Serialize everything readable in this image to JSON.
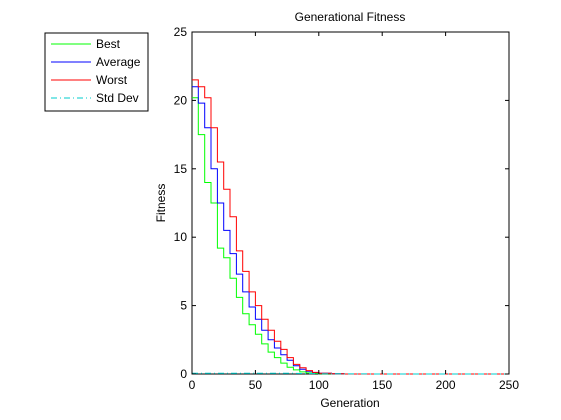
{
  "chart_data": {
    "type": "line",
    "title": "Generational Fitness",
    "xlabel": "Generation",
    "ylabel": "Fitness",
    "xlim": [
      0,
      250
    ],
    "ylim": [
      0,
      25
    ],
    "xticks": [
      0,
      50,
      100,
      150,
      200,
      250
    ],
    "yticks": [
      0,
      5,
      10,
      15,
      20,
      25
    ],
    "grid": false,
    "legend_position": "outside-top-left",
    "series": [
      {
        "name": "Best",
        "color": "#00ff00",
        "dash": "solid",
        "x": [
          0,
          5,
          10,
          15,
          20,
          25,
          30,
          35,
          40,
          45,
          50,
          55,
          60,
          65,
          70,
          75,
          80,
          85,
          90,
          95,
          100,
          110,
          120,
          150,
          200,
          250
        ],
        "y": [
          20.2,
          17.5,
          14.0,
          12.5,
          9.2,
          8.5,
          7.0,
          5.6,
          4.4,
          3.6,
          2.9,
          2.2,
          1.6,
          1.2,
          0.8,
          0.5,
          0.3,
          0.15,
          0.08,
          0.04,
          0.02,
          0.01,
          0,
          0,
          0,
          0
        ]
      },
      {
        "name": "Average",
        "color": "#0000ff",
        "dash": "solid",
        "x": [
          0,
          5,
          10,
          15,
          20,
          25,
          30,
          35,
          40,
          45,
          50,
          55,
          60,
          65,
          70,
          75,
          80,
          85,
          90,
          95,
          100,
          110,
          120,
          150,
          200,
          250
        ],
        "y": [
          21.0,
          19.8,
          18.0,
          15.0,
          12.5,
          10.5,
          8.8,
          7.3,
          6.0,
          4.9,
          4.0,
          3.2,
          2.5,
          1.9,
          1.4,
          1.0,
          0.6,
          0.35,
          0.2,
          0.1,
          0.05,
          0.02,
          0,
          0,
          0,
          0
        ]
      },
      {
        "name": "Worst",
        "color": "#ff0000",
        "dash": "solid",
        "x": [
          0,
          5,
          10,
          15,
          20,
          25,
          30,
          35,
          40,
          45,
          50,
          55,
          60,
          65,
          70,
          75,
          80,
          85,
          90,
          95,
          100,
          110,
          120,
          150,
          200,
          250
        ],
        "y": [
          21.5,
          21.0,
          20.2,
          18.0,
          15.5,
          13.5,
          11.5,
          9.0,
          7.5,
          6.0,
          5.0,
          4.0,
          3.2,
          2.4,
          1.8,
          1.2,
          0.7,
          0.45,
          0.25,
          0.12,
          0.06,
          0.02,
          0,
          0,
          0,
          0
        ]
      },
      {
        "name": "Std Dev",
        "color": "#00cccc",
        "dash": "dashdot",
        "x": [
          0,
          10,
          20,
          30,
          40,
          50,
          60,
          70,
          80,
          90,
          100,
          150,
          200,
          250
        ],
        "y": [
          0.05,
          0.05,
          0.05,
          0.05,
          0.05,
          0.05,
          0.05,
          0.05,
          0.05,
          0.03,
          0.02,
          0,
          0,
          0
        ]
      }
    ]
  }
}
